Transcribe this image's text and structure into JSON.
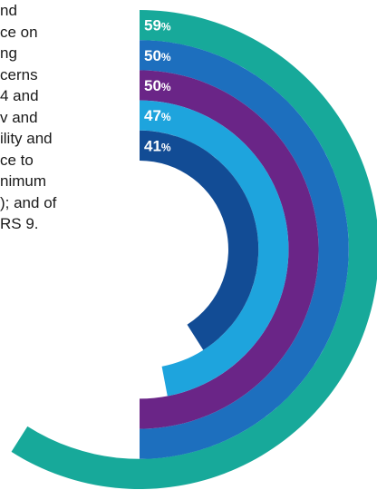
{
  "body_text": {
    "lines": [
      "nd",
      "ce on",
      "ng",
      "cerns",
      "4 and",
      "v and",
      "ility and",
      "ce to",
      "nimum",
      "); and of",
      "RS 9."
    ]
  },
  "chart_data": {
    "type": "radial-bar",
    "title": "",
    "max": 100,
    "unit": "%",
    "series": [
      {
        "value": 59,
        "label": "59",
        "color": "#17a99a"
      },
      {
        "value": 50,
        "label": "50",
        "color": "#1d6fbe"
      },
      {
        "value": 50,
        "label": "50",
        "color": "#6a2587"
      },
      {
        "value": 47,
        "label": "47",
        "color": "#1ea4dd"
      },
      {
        "value": 41,
        "label": "41",
        "color": "#124c95"
      }
    ]
  }
}
